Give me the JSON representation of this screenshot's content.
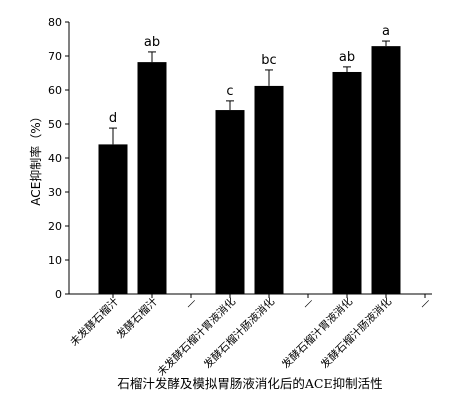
{
  "chart_data": {
    "type": "bar",
    "title": "石榴汁发酵及模拟胃肠液消化后的ACE抑制活性",
    "ylabel": "ACE抑制率（%）",
    "categories": [
      "未发酵石榴汁",
      "发酵石榴汁",
      "—",
      "未发酵石榴汁胃液消化",
      "发酵石榴汁肠液消化",
      "—",
      "发酵石榴汁胃液消化",
      "发酵石榴汁肠液消化",
      "—"
    ],
    "values": [
      44,
      68.2,
      null,
      54.1,
      61.2,
      null,
      65.3,
      72.9,
      null
    ],
    "errors": [
      4.8,
      3,
      null,
      2.7,
      4.7,
      null,
      1.5,
      1.5,
      null
    ],
    "annotations": [
      "d",
      "ab",
      null,
      "c",
      "bc",
      null,
      "ab",
      "a",
      null
    ],
    "color": "#000000",
    "ylim": [
      0,
      80
    ],
    "yticks": [
      0,
      10,
      20,
      30,
      40,
      50,
      60,
      70,
      80
    ]
  }
}
